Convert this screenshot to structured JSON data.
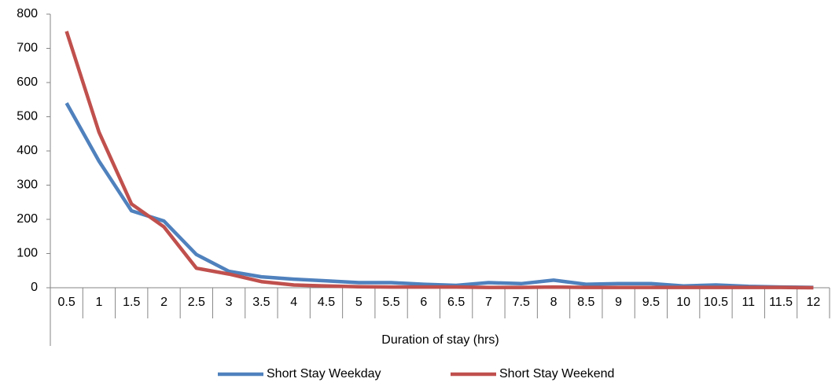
{
  "chart_data": {
    "type": "line",
    "x_label": "Duration of stay (hrs)",
    "categories": [
      "0.5",
      "1",
      "1.5",
      "2",
      "2.5",
      "3",
      "3.5",
      "4",
      "4.5",
      "5",
      "5.5",
      "6",
      "6.5",
      "7",
      "7.5",
      "8",
      "8.5",
      "9",
      "9.5",
      "10",
      "10.5",
      "11",
      "11.5",
      "12"
    ],
    "series": [
      {
        "name": "Short Stay Weekday",
        "color": "#4f81bd",
        "values": [
          540,
          370,
          225,
          195,
          97,
          48,
          32,
          25,
          20,
          15,
          15,
          10,
          7,
          15,
          12,
          22,
          10,
          12,
          12,
          5,
          8,
          4,
          2,
          1
        ]
      },
      {
        "name": "Short Stay Weekend",
        "color": "#c0504d",
        "values": [
          750,
          455,
          245,
          178,
          57,
          40,
          18,
          8,
          5,
          3,
          2,
          2,
          2,
          1,
          1,
          2,
          1,
          1,
          1,
          1,
          1,
          1,
          1,
          0
        ]
      }
    ],
    "ylim": [
      0,
      800
    ],
    "yticks": [
      0,
      100,
      200,
      300,
      400,
      500,
      600,
      700,
      800
    ],
    "grid": false,
    "legend": "bottom"
  }
}
